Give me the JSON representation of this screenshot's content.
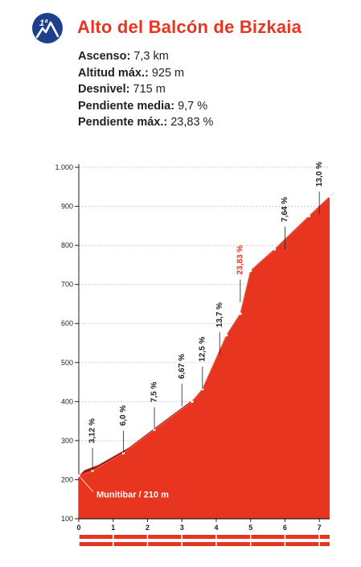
{
  "badge": {
    "text": "1ª",
    "color": "#1e3f8a",
    "icon": "mountain-icon"
  },
  "title": "Alto del Balcón de Bizkaia",
  "accent_color": "#e8351f",
  "stats": [
    {
      "label": "Ascenso:",
      "value": "7,3 km"
    },
    {
      "label": "Altitud máx.:",
      "value": "925 m"
    },
    {
      "label": "Desnivel:",
      "value": "715 m"
    },
    {
      "label": "Pendiente media:",
      "value": "9,7 %"
    },
    {
      "label": "Pendiente máx.:",
      "value": "23,83 %"
    }
  ],
  "chart_data": {
    "type": "area",
    "title": "",
    "xlabel": "",
    "ylabel": "",
    "xlim": [
      0,
      7.3
    ],
    "ylim": [
      100,
      1000
    ],
    "x_ticks": [
      0,
      1,
      2,
      3,
      4,
      5,
      6,
      7
    ],
    "y_ticks": [
      100,
      200,
      300,
      400,
      500,
      600,
      700,
      800,
      900,
      1000
    ],
    "y_tick_labels": [
      "100",
      "200",
      "300",
      "400",
      "500",
      "600",
      "700",
      "800",
      "900",
      "1.000"
    ],
    "grid": "horizontal",
    "profile": [
      {
        "x": 0,
        "y": 210
      },
      {
        "x": 0.4,
        "y": 223
      },
      {
        "x": 1.3,
        "y": 268
      },
      {
        "x": 2.2,
        "y": 328
      },
      {
        "x": 3.3,
        "y": 400
      },
      {
        "x": 3.6,
        "y": 432
      },
      {
        "x": 4.3,
        "y": 570
      },
      {
        "x": 4.7,
        "y": 625
      },
      {
        "x": 5.0,
        "y": 735
      },
      {
        "x": 5.7,
        "y": 790
      },
      {
        "x": 6.7,
        "y": 875
      },
      {
        "x": 7.3,
        "y": 925
      }
    ],
    "slope_labels": [
      {
        "x": 0.4,
        "y": 223,
        "text": "3,12 %",
        "highlight": false
      },
      {
        "x": 1.3,
        "y": 268,
        "text": "6,0 %",
        "highlight": false
      },
      {
        "x": 2.2,
        "y": 328,
        "text": "7,5 %",
        "highlight": false
      },
      {
        "x": 3.0,
        "y": 388,
        "text": "6,67 %",
        "highlight": false
      },
      {
        "x": 3.6,
        "y": 432,
        "text": "12,5 %",
        "highlight": false
      },
      {
        "x": 4.1,
        "y": 520,
        "text": "13,7 %",
        "highlight": false
      },
      {
        "x": 4.7,
        "y": 655,
        "text": "23,83 %",
        "highlight": true
      },
      {
        "x": 6.0,
        "y": 790,
        "text": "7,64 %",
        "highlight": false
      },
      {
        "x": 7.0,
        "y": 880,
        "text": "13,0 %",
        "highlight": false
      }
    ],
    "start_label": "Munitibar / 210 m",
    "colors": {
      "fill": "#e8351f",
      "front": "#ef5a3f",
      "ridge": "#9a1b12",
      "highlight_text": "#e8351f",
      "text": "#231f20"
    }
  }
}
